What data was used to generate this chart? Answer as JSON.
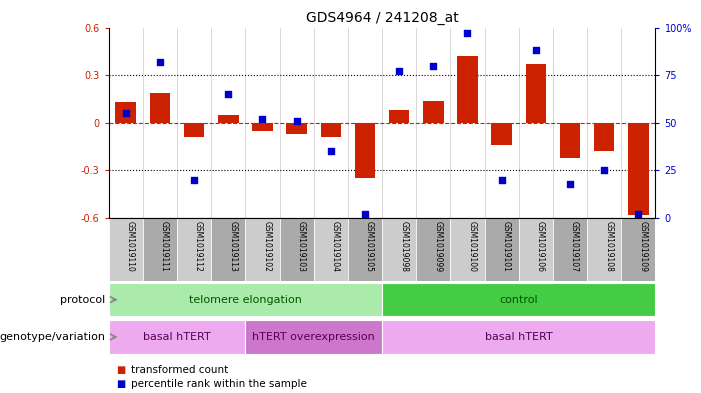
{
  "title": "GDS4964 / 241208_at",
  "samples": [
    "GSM1019110",
    "GSM1019111",
    "GSM1019112",
    "GSM1019113",
    "GSM1019102",
    "GSM1019103",
    "GSM1019104",
    "GSM1019105",
    "GSM1019098",
    "GSM1019099",
    "GSM1019100",
    "GSM1019101",
    "GSM1019106",
    "GSM1019107",
    "GSM1019108",
    "GSM1019109"
  ],
  "bar_values": [
    0.13,
    0.19,
    -0.09,
    0.05,
    -0.05,
    -0.07,
    -0.09,
    -0.35,
    0.08,
    0.14,
    0.42,
    -0.14,
    0.37,
    -0.22,
    -0.18,
    -0.58
  ],
  "pct_values": [
    55,
    82,
    20,
    65,
    52,
    51,
    35,
    2,
    77,
    80,
    97,
    20,
    88,
    18,
    25,
    2
  ],
  "ylim": [
    -0.6,
    0.6
  ],
  "y2lim": [
    0,
    100
  ],
  "yticks": [
    -0.6,
    -0.3,
    0.0,
    0.3,
    0.6
  ],
  "y2ticks": [
    0,
    25,
    50,
    75,
    100
  ],
  "ytick_labels": [
    "-0.6",
    "-0.3",
    "0",
    "0.3",
    "0.6"
  ],
  "y2tick_labels": [
    "0",
    "25",
    "50",
    "75",
    "100%"
  ],
  "hlines_dotted": [
    -0.3,
    0.3
  ],
  "hline_zero": 0.0,
  "bar_color": "#cc2200",
  "dot_color": "#0000cc",
  "zero_line_color": "#cc2200",
  "hline_color": "#000000",
  "protocol_groups": [
    {
      "label": "telomere elongation",
      "start": 0,
      "end": 8,
      "color": "#aaeaaa"
    },
    {
      "label": "control",
      "start": 8,
      "end": 16,
      "color": "#44cc44"
    }
  ],
  "genotype_groups": [
    {
      "label": "basal hTERT",
      "start": 0,
      "end": 4,
      "color": "#eeaaee"
    },
    {
      "label": "hTERT overexpression",
      "start": 4,
      "end": 8,
      "color": "#cc77cc"
    },
    {
      "label": "basal hTERT",
      "start": 8,
      "end": 16,
      "color": "#eeaaee"
    }
  ],
  "legend_items": [
    {
      "label": "transformed count",
      "color": "#cc2200"
    },
    {
      "label": "percentile rank within the sample",
      "color": "#0000cc"
    }
  ],
  "background_color": "#ffffff",
  "title_fontsize": 10,
  "tick_fontsize": 7,
  "sample_fontsize": 5.5,
  "label_fontsize": 8,
  "annot_fontsize": 8
}
